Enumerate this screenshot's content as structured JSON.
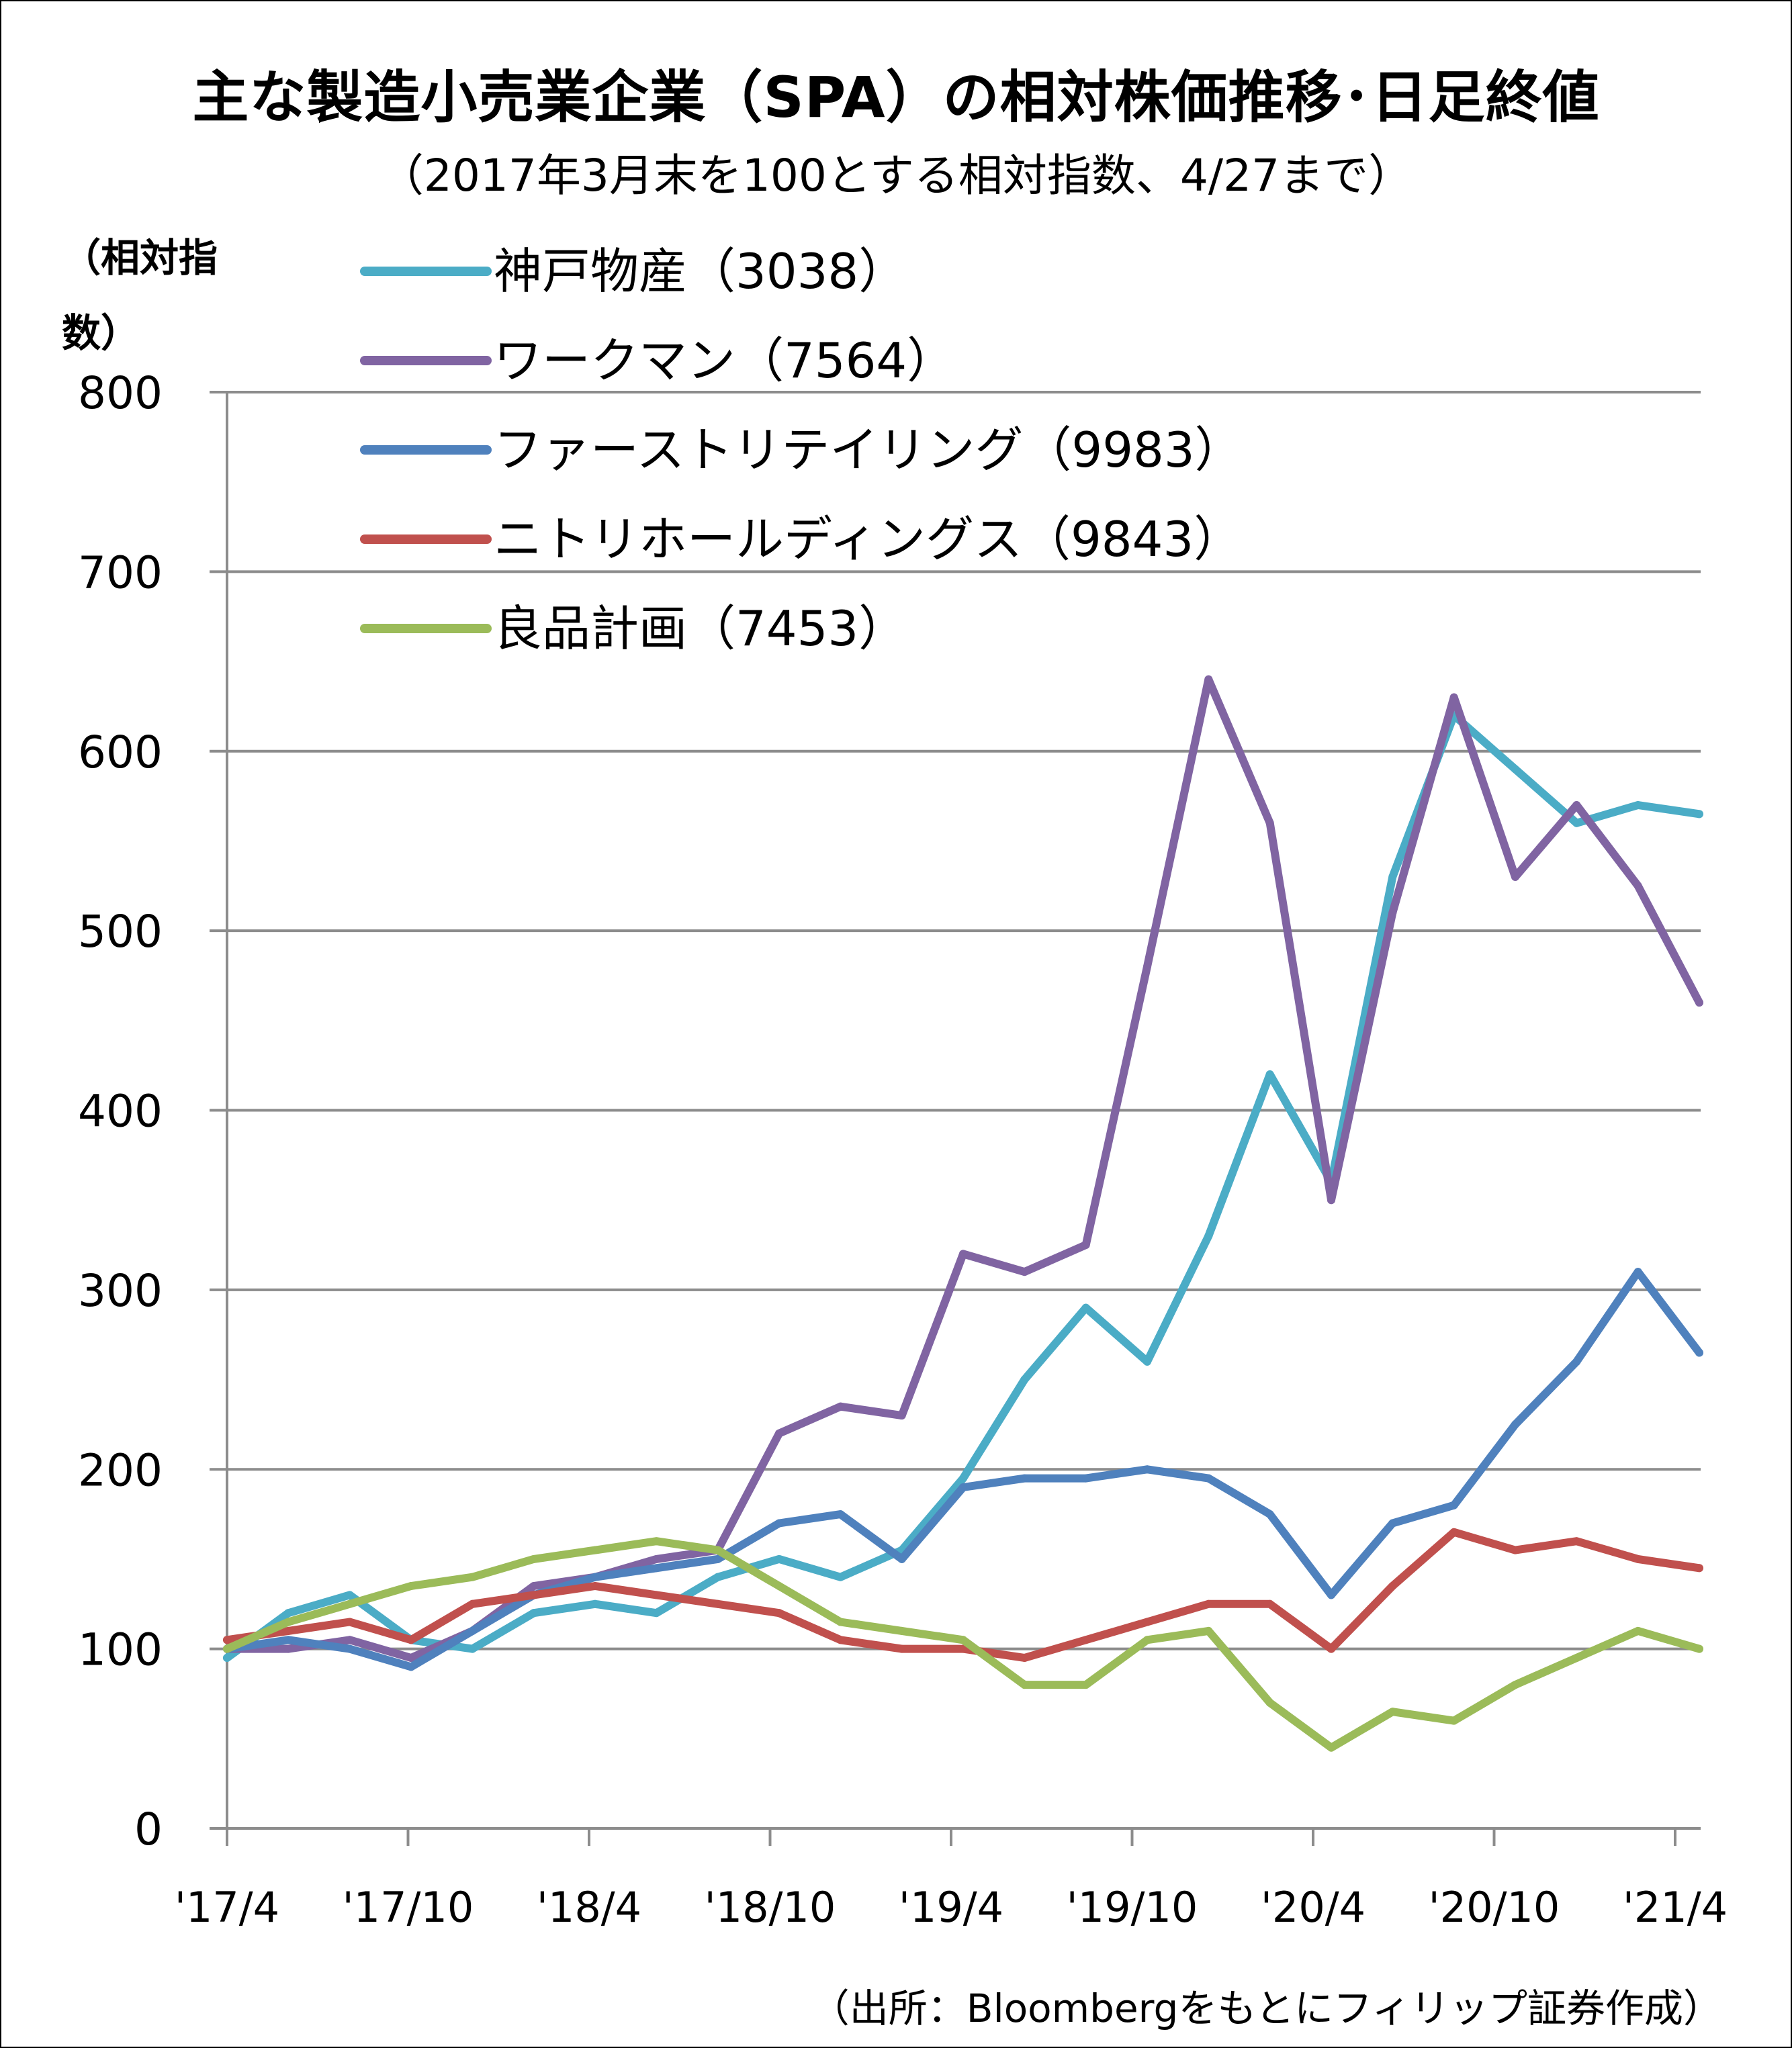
{
  "title": "主な製造小売業企業（SPA）の相対株価推移･日足終値",
  "subtitle": "（2017年3月末を100とする相対指数、4/27まで）",
  "source": "（出所：Bloombergをもとにフィリップ証券作成）",
  "chart_data": {
    "type": "line",
    "ylabel": "（相対指数）",
    "xlabel": "",
    "ylim": [
      0,
      800
    ],
    "grid": true,
    "legend_position": "top-left",
    "y_ticks": [
      "0",
      "100",
      "200",
      "300",
      "400",
      "500",
      "600",
      "700",
      "800"
    ],
    "x_ticks": [
      "'17/4",
      "'17/10",
      "'18/4",
      "'18/10",
      "'19/4",
      "'19/10",
      "'20/4",
      "'20/10",
      "'21/4"
    ],
    "x": [
      "2017-04",
      "2017-06",
      "2017-08",
      "2017-10",
      "2017-12",
      "2018-02",
      "2018-04",
      "2018-06",
      "2018-08",
      "2018-10",
      "2018-12",
      "2019-02",
      "2019-04",
      "2019-06",
      "2019-08",
      "2019-10",
      "2019-12",
      "2020-02",
      "2020-04",
      "2020-06",
      "2020-08",
      "2020-10",
      "2020-12",
      "2021-02",
      "2021-04"
    ],
    "series": [
      {
        "name": "神戸物産（3038）",
        "color": "#4BACC6",
        "values": [
          95,
          120,
          130,
          105,
          100,
          120,
          125,
          120,
          140,
          150,
          140,
          155,
          195,
          250,
          290,
          260,
          330,
          420,
          360,
          530,
          620,
          590,
          560,
          570,
          565
        ]
      },
      {
        "name": "ワークマン（7564）",
        "color": "#8064A2",
        "values": [
          100,
          100,
          105,
          95,
          110,
          135,
          140,
          150,
          155,
          220,
          235,
          230,
          320,
          310,
          325,
          480,
          640,
          560,
          350,
          510,
          630,
          530,
          570,
          525,
          460
        ]
      },
      {
        "name": "ファーストリテイリング（9983）",
        "color": "#4F81BD",
        "values": [
          100,
          105,
          100,
          90,
          110,
          130,
          140,
          145,
          150,
          170,
          175,
          150,
          190,
          195,
          195,
          200,
          195,
          175,
          130,
          170,
          180,
          225,
          260,
          310,
          265
        ]
      },
      {
        "name": "ニトリホールディングス（9843）",
        "color": "#C0504D",
        "values": [
          105,
          110,
          115,
          105,
          125,
          130,
          135,
          130,
          125,
          120,
          105,
          100,
          100,
          95,
          105,
          115,
          125,
          125,
          100,
          135,
          165,
          155,
          160,
          150,
          145
        ]
      },
      {
        "name": "良品計画（7453）",
        "color": "#9BBB59",
        "values": [
          100,
          115,
          125,
          135,
          140,
          150,
          155,
          160,
          155,
          135,
          115,
          110,
          105,
          80,
          80,
          105,
          110,
          70,
          45,
          65,
          60,
          80,
          95,
          110,
          100
        ]
      }
    ]
  }
}
